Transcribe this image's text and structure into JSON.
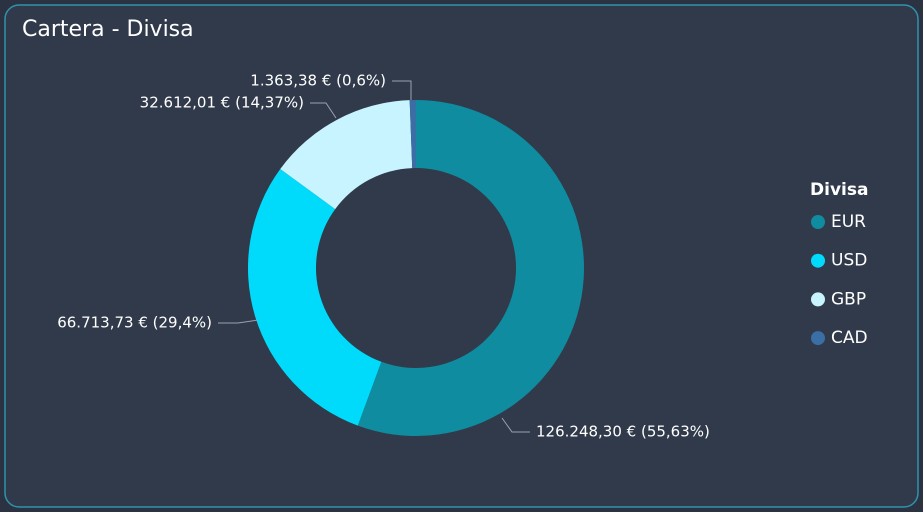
{
  "chart_data": {
    "type": "donut",
    "title": "Cartera - Divisa",
    "categories": [
      "EUR",
      "USD",
      "GBP",
      "CAD"
    ],
    "values": [
      126248.3,
      66713.73,
      32612.01,
      1363.38
    ],
    "value_labels": [
      "126.248,30 € (55,63%)",
      "66.713,73 € (29,4%)",
      "32.612,01 € (14,37%)",
      "1.363,38 € (0,6%)"
    ],
    "colors": [
      "#0F8C9F",
      "#00DBFB",
      "#C7F4FF",
      "#3A6EA5"
    ],
    "legend_title": "Divisa",
    "legend": "right"
  }
}
